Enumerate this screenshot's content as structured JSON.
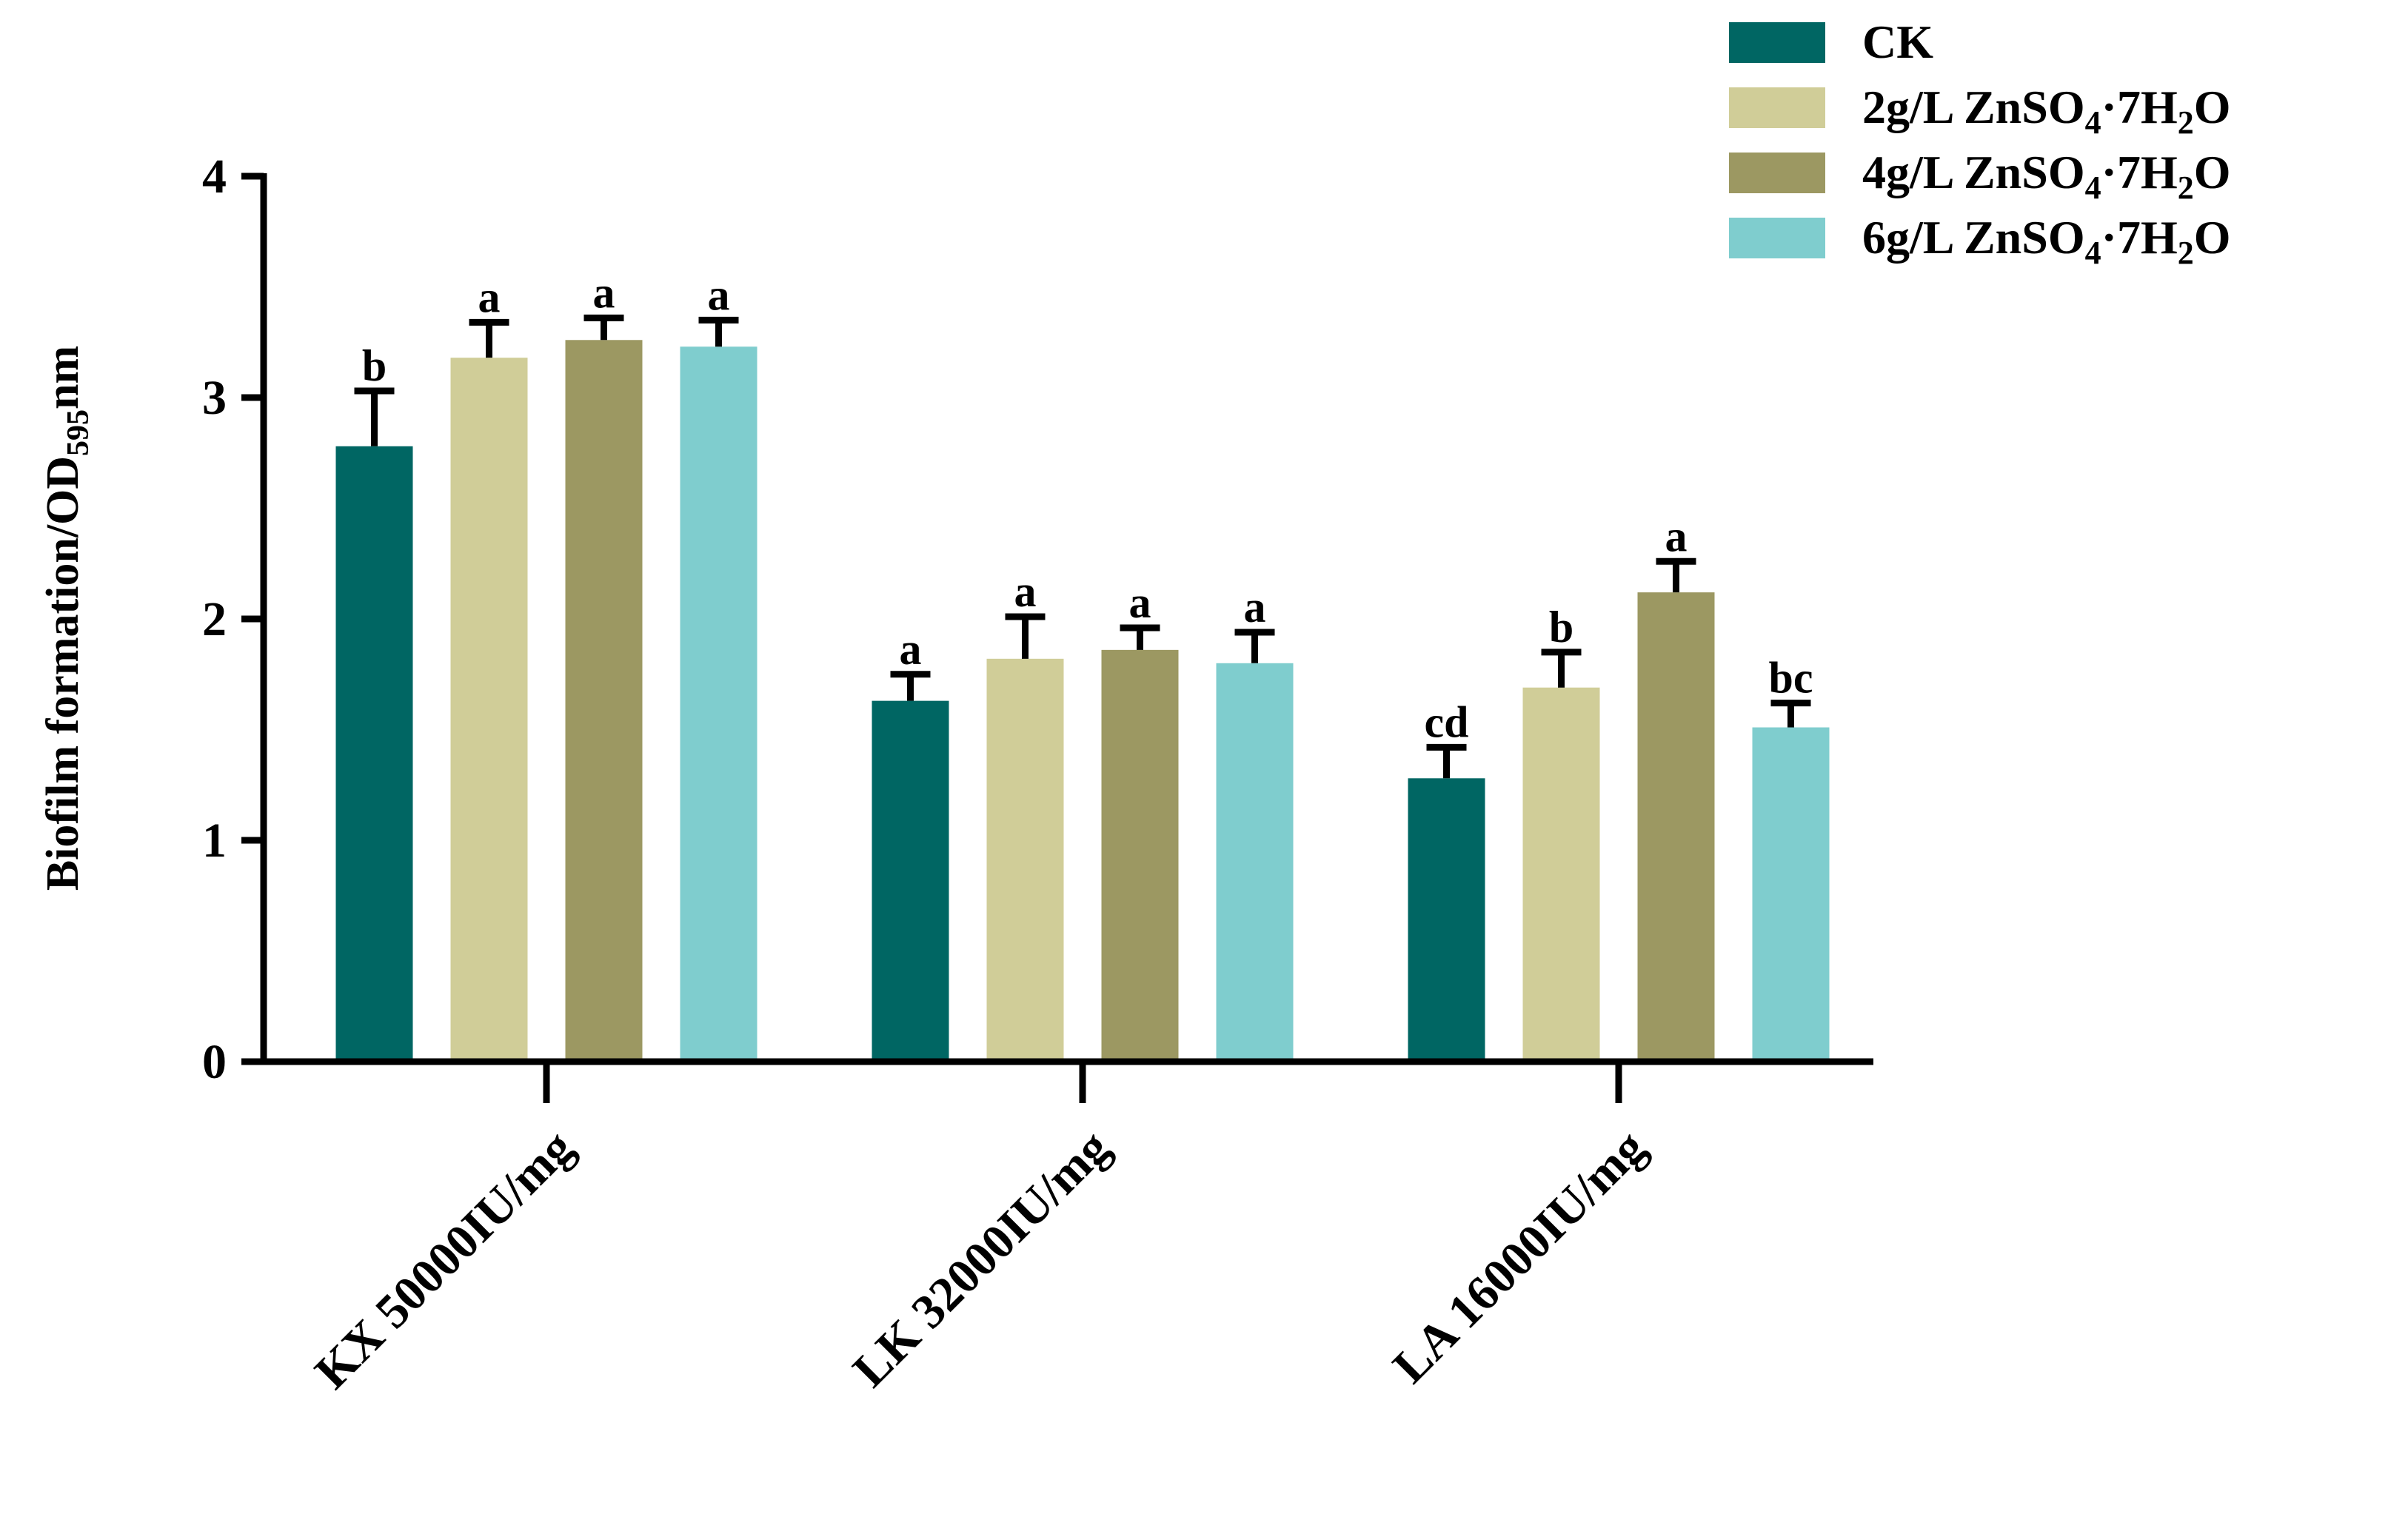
{
  "chart_data": {
    "type": "bar",
    "title": "",
    "xlabel": "",
    "ylabel": {
      "main": "Biofilm formation/OD",
      "sub": "595",
      "suffix": "nm"
    },
    "ylim": [
      0,
      4
    ],
    "yticks": [
      "0",
      "1",
      "2",
      "3",
      "4"
    ],
    "categories": [
      "KX 50000IU/mg",
      "LK 32000IU/mg",
      "LA 16000IU/mg"
    ],
    "legend_position": "top-right",
    "series": [
      {
        "name": "CK",
        "legend": {
          "pre": "CK",
          "sub1": "",
          "mid": "",
          "sub2": "",
          "post": ""
        },
        "color": "#006663",
        "values": [
          2.78,
          1.63,
          1.28
        ],
        "errors": [
          0.25,
          0.12,
          0.14
        ],
        "letters": [
          "b",
          "a",
          "cd"
        ]
      },
      {
        "name": "2g/L ZnSO4·7H2O",
        "legend": {
          "pre": "2g/L ZnSO",
          "sub1": "4",
          "mid": "·7H",
          "sub2": "2",
          "post": "O"
        },
        "color": "#D0CD98",
        "values": [
          3.18,
          1.82,
          1.69
        ],
        "errors": [
          0.16,
          0.19,
          0.16
        ],
        "letters": [
          "a",
          "a",
          "b"
        ]
      },
      {
        "name": "4g/L ZnSO4·7H2O",
        "legend": {
          "pre": "4g/L ZnSO",
          "sub1": "4",
          "mid": "·7H",
          "sub2": "2",
          "post": "O"
        },
        "color": "#9C9862",
        "values": [
          3.26,
          1.86,
          2.12
        ],
        "errors": [
          0.1,
          0.1,
          0.14
        ],
        "letters": [
          "a",
          "a",
          "a"
        ]
      },
      {
        "name": "6g/L ZnSO4·7H2O",
        "legend": {
          "pre": "6g/L ZnSO",
          "sub1": "4",
          "mid": "·7H",
          "sub2": "2",
          "post": "O"
        },
        "color": "#7FCDCE",
        "values": [
          3.23,
          1.8,
          1.51
        ],
        "errors": [
          0.12,
          0.14,
          0.11
        ],
        "letters": [
          "a",
          "a",
          "bc"
        ]
      }
    ]
  }
}
